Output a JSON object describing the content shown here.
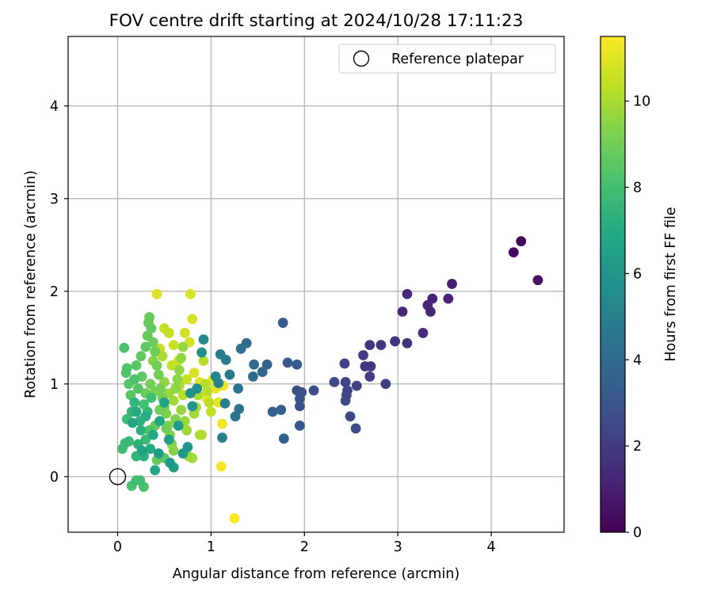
{
  "chart_data": {
    "type": "scatter",
    "title": "FOV centre drift starting at 2024/10/28 17:11:23",
    "xlabel": "Angular distance from reference (arcmin)",
    "ylabel": "Rotation from reference (arcmin)",
    "xlim": [
      -0.53,
      4.78
    ],
    "ylim": [
      -0.6,
      4.75
    ],
    "xticks": [
      "0",
      "1",
      "2",
      "3",
      "4"
    ],
    "yticks": [
      "0",
      "1",
      "2",
      "3",
      "4"
    ],
    "grid": true,
    "legend": {
      "placement": "top-right",
      "entries": [
        "Reference platepar"
      ]
    },
    "reference_point": {
      "x": 0,
      "y": 0
    },
    "colorbar": {
      "label": "Hours from first FF file",
      "range": [
        0,
        11.5
      ],
      "ticks": [
        "0",
        "2",
        "4",
        "6",
        "8",
        "10"
      ],
      "colormap": "viridis"
    },
    "points": [
      [
        4.32,
        2.54,
        0.1
      ],
      [
        4.24,
        2.42,
        0.3
      ],
      [
        4.5,
        2.12,
        0.5
      ],
      [
        3.58,
        2.08,
        1.0
      ],
      [
        3.37,
        1.92,
        1.1
      ],
      [
        3.54,
        1.92,
        1.1
      ],
      [
        3.32,
        1.85,
        1.2
      ],
      [
        3.35,
        1.78,
        1.3
      ],
      [
        3.05,
        1.78,
        1.3
      ],
      [
        3.1,
        1.97,
        1.4
      ],
      [
        3.27,
        1.55,
        1.5
      ],
      [
        3.1,
        1.44,
        1.6
      ],
      [
        2.97,
        1.46,
        1.7
      ],
      [
        2.82,
        1.42,
        1.8
      ],
      [
        2.7,
        1.42,
        1.8
      ],
      [
        2.71,
        1.19,
        1.9
      ],
      [
        2.65,
        1.19,
        1.9
      ],
      [
        2.7,
        1.08,
        2.0
      ],
      [
        2.63,
        1.31,
        2.0
      ],
      [
        2.87,
        1.0,
        2.1
      ],
      [
        2.56,
        0.98,
        2.2
      ],
      [
        2.43,
        1.22,
        2.2
      ],
      [
        2.44,
        1.02,
        2.3
      ],
      [
        2.46,
        0.93,
        2.4
      ],
      [
        2.45,
        0.88,
        2.4
      ],
      [
        2.44,
        0.82,
        2.5
      ],
      [
        2.49,
        0.65,
        2.5
      ],
      [
        2.55,
        0.52,
        2.6
      ],
      [
        2.32,
        1.02,
        2.6
      ],
      [
        2.1,
        0.93,
        2.7
      ],
      [
        1.97,
        0.91,
        2.8
      ],
      [
        1.92,
        0.93,
        2.9
      ],
      [
        1.95,
        0.84,
        2.9
      ],
      [
        1.95,
        0.76,
        3.0
      ],
      [
        1.95,
        0.55,
        3.1
      ],
      [
        1.92,
        1.21,
        3.2
      ],
      [
        1.82,
        1.23,
        3.3
      ],
      [
        1.77,
        1.66,
        3.4
      ],
      [
        1.78,
        0.41,
        3.5
      ],
      [
        1.75,
        0.72,
        3.6
      ],
      [
        1.66,
        0.7,
        3.7
      ],
      [
        1.6,
        1.21,
        3.7
      ],
      [
        1.55,
        1.13,
        3.8
      ],
      [
        1.46,
        1.21,
        3.9
      ],
      [
        1.45,
        1.08,
        4.0
      ],
      [
        1.38,
        1.44,
        4.1
      ],
      [
        1.32,
        1.38,
        4.2
      ],
      [
        1.29,
        0.95,
        4.3
      ],
      [
        1.3,
        0.73,
        4.3
      ],
      [
        1.26,
        0.65,
        4.4
      ],
      [
        1.2,
        1.1,
        4.6
      ],
      [
        1.16,
        1.26,
        4.7
      ],
      [
        1.1,
        1.32,
        4.8
      ],
      [
        1.12,
        0.42,
        4.9
      ],
      [
        1.15,
        0.79,
        5.0
      ],
      [
        1.08,
        1.01,
        5.1
      ],
      [
        1.05,
        1.08,
        5.2
      ],
      [
        0.92,
        1.48,
        5.3
      ],
      [
        0.9,
        1.34,
        5.5
      ],
      [
        0.85,
        0.95,
        5.6
      ],
      [
        0.78,
        0.9,
        5.8
      ],
      [
        0.8,
        0.76,
        5.9
      ],
      [
        0.75,
        0.32,
        6.0
      ],
      [
        0.7,
        0.25,
        6.1
      ],
      [
        0.65,
        0.55,
        6.2
      ],
      [
        0.6,
        0.1,
        6.4
      ],
      [
        0.55,
        0.4,
        6.5
      ],
      [
        0.5,
        0.8,
        6.6
      ],
      [
        0.45,
        0.6,
        6.7
      ],
      [
        0.4,
        0.07,
        6.8
      ],
      [
        0.38,
        0.45,
        6.9
      ],
      [
        0.35,
        0.3,
        7.0
      ],
      [
        0.3,
        0.65,
        7.1
      ],
      [
        0.28,
        0.22,
        7.2
      ],
      [
        0.25,
        0.5,
        7.3
      ],
      [
        0.22,
        0.35,
        7.4
      ],
      [
        0.2,
        0.22,
        7.5
      ],
      [
        0.18,
        0.8,
        7.5
      ],
      [
        0.15,
        0.7,
        7.6
      ],
      [
        0.12,
        0.38,
        7.7
      ],
      [
        0.1,
        0.62,
        7.8
      ],
      [
        0.08,
        0.36,
        7.8
      ],
      [
        0.05,
        0.3,
        7.9
      ],
      [
        0.2,
        -0.04,
        8.0
      ],
      [
        0.24,
        -0.04,
        8.1
      ],
      [
        0.15,
        -0.1,
        8.1
      ],
      [
        0.28,
        -0.11,
        8.2
      ],
      [
        0.07,
        1.39,
        8.2
      ],
      [
        0.1,
        1.17,
        8.3
      ],
      [
        0.09,
        1.12,
        8.3
      ],
      [
        0.12,
        1.0,
        8.4
      ],
      [
        0.14,
        0.88,
        8.5
      ],
      [
        0.2,
        1.2,
        8.5
      ],
      [
        0.25,
        1.3,
        8.6
      ],
      [
        0.3,
        1.4,
        8.6
      ],
      [
        0.32,
        1.52,
        8.7
      ],
      [
        0.33,
        1.66,
        8.7
      ],
      [
        0.34,
        1.72,
        8.8
      ],
      [
        0.36,
        1.6,
        8.8
      ],
      [
        0.38,
        1.45,
        8.9
      ],
      [
        0.4,
        1.35,
        8.9
      ],
      [
        0.42,
        1.2,
        9.0
      ],
      [
        0.44,
        1.1,
        9.0
      ],
      [
        0.46,
        0.95,
        9.1
      ],
      [
        0.48,
        0.85,
        9.1
      ],
      [
        0.5,
        0.75,
        9.2
      ],
      [
        0.52,
        0.68,
        9.2
      ],
      [
        0.54,
        0.55,
        9.3
      ],
      [
        0.56,
        0.45,
        9.3
      ],
      [
        0.58,
        0.35,
        9.4
      ],
      [
        0.6,
        0.28,
        9.4
      ],
      [
        0.62,
        0.95,
        9.5
      ],
      [
        0.64,
        1.05,
        9.5
      ],
      [
        0.66,
        1.15,
        9.6
      ],
      [
        0.68,
        1.28,
        9.6
      ],
      [
        0.7,
        1.4,
        9.7
      ],
      [
        0.72,
        0.6,
        9.7
      ],
      [
        0.74,
        0.5,
        9.8
      ],
      [
        0.76,
        0.22,
        9.8
      ],
      [
        0.8,
        0.2,
        9.9
      ],
      [
        0.82,
        0.68,
        9.9
      ],
      [
        0.84,
        0.75,
        10.0
      ],
      [
        0.86,
        0.88,
        10.0
      ],
      [
        0.88,
        0.45,
        10.1
      ],
      [
        0.9,
        0.45,
        10.1
      ],
      [
        0.92,
        1.25,
        10.2
      ],
      [
        0.94,
        1.0,
        10.2
      ],
      [
        0.96,
        0.92,
        10.3
      ],
      [
        0.98,
        0.8,
        10.3
      ],
      [
        1.0,
        0.7,
        10.4
      ],
      [
        0.45,
        1.38,
        10.4
      ],
      [
        0.5,
        1.6,
        10.5
      ],
      [
        0.55,
        1.55,
        10.5
      ],
      [
        0.6,
        1.42,
        10.6
      ],
      [
        0.65,
        1.25,
        10.6
      ],
      [
        0.72,
        1.55,
        10.7
      ],
      [
        0.77,
        1.45,
        10.8
      ],
      [
        0.8,
        1.7,
        10.8
      ],
      [
        0.42,
        1.97,
        10.9
      ],
      [
        0.78,
        1.97,
        10.9
      ],
      [
        1.02,
        1.05,
        11.0
      ],
      [
        1.05,
        0.95,
        11.1
      ],
      [
        1.08,
        0.8,
        11.1
      ],
      [
        1.13,
        0.98,
        11.2
      ],
      [
        1.12,
        0.57,
        11.3
      ],
      [
        1.11,
        0.11,
        11.4
      ],
      [
        1.25,
        -0.45,
        11.5
      ],
      [
        0.18,
        1.05,
        8.2
      ],
      [
        0.22,
        0.95,
        8.4
      ],
      [
        0.26,
        1.08,
        8.6
      ],
      [
        0.3,
        0.9,
        8.8
      ],
      [
        0.35,
        1.0,
        9.0
      ],
      [
        0.4,
        0.92,
        9.2
      ],
      [
        0.28,
        0.78,
        8.0
      ],
      [
        0.32,
        0.7,
        7.6
      ],
      [
        0.36,
        0.85,
        7.9
      ],
      [
        0.24,
        0.6,
        7.3
      ],
      [
        0.5,
        1.02,
        9.6
      ],
      [
        0.55,
        0.9,
        9.8
      ],
      [
        0.6,
        0.82,
        9.9
      ],
      [
        0.66,
        0.98,
        10.1
      ],
      [
        0.7,
        0.88,
        10.3
      ],
      [
        0.45,
        0.72,
        9.0
      ],
      [
        0.4,
        0.55,
        8.7
      ],
      [
        0.34,
        0.5,
        8.3
      ],
      [
        0.3,
        0.4,
        7.8
      ],
      [
        0.38,
        1.25,
        9.4
      ],
      [
        0.48,
        1.3,
        10.0
      ],
      [
        0.58,
        1.2,
        10.4
      ],
      [
        0.52,
        0.52,
        9.0
      ],
      [
        0.62,
        0.62,
        9.3
      ],
      [
        0.68,
        0.72,
        9.7
      ],
      [
        0.74,
        1.05,
        10.5
      ],
      [
        0.82,
        1.12,
        10.9
      ],
      [
        0.88,
        1.02,
        11.0
      ],
      [
        0.95,
        0.85,
        11.2
      ],
      [
        0.2,
        0.7,
        7.0
      ],
      [
        0.16,
        0.58,
        6.8
      ],
      [
        0.26,
        0.28,
        6.7
      ],
      [
        0.44,
        0.25,
        6.3
      ],
      [
        0.5,
        0.2,
        8.5
      ],
      [
        0.42,
        0.18,
        8.8
      ],
      [
        0.56,
        0.15,
        6.2
      ]
    ]
  }
}
